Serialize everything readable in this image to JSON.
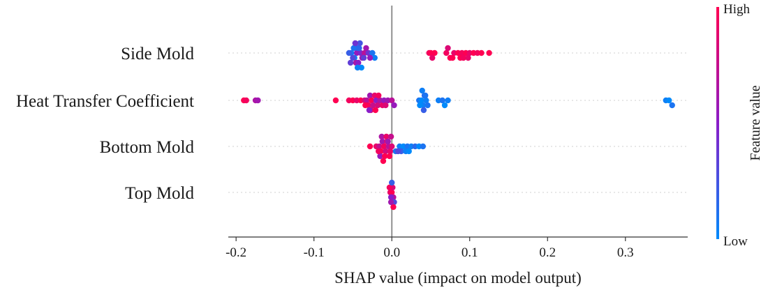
{
  "chart_data": {
    "type": "scatter",
    "subtype": "shap-beeswarm",
    "title": "",
    "xlabel": "SHAP value (impact on model output)",
    "xlim": [
      -0.21,
      0.38
    ],
    "xticks": [
      -0.2,
      -0.1,
      0.0,
      0.1,
      0.2,
      0.3
    ],
    "xtick_labels": [
      "-0.2",
      "-0.1",
      "0.0",
      "0.1",
      "0.2",
      "0.3"
    ],
    "zero_line": 0.0,
    "colorbar": {
      "title": "Feature value",
      "high_label": "High",
      "low_label": "Low",
      "high_color": "#ff0052",
      "mid_color": "#8a1dc8",
      "low_color": "#008afb"
    },
    "features": [
      {
        "name": "Side Mold",
        "points": [
          {
            "x": -0.045,
            "c": 0.55
          },
          {
            "x": -0.052,
            "c": 0.1
          },
          {
            "x": -0.048,
            "c": 0.05
          },
          {
            "x": -0.044,
            "c": 0.2
          },
          {
            "x": -0.04,
            "c": 0.45
          },
          {
            "x": -0.038,
            "c": 0.6
          },
          {
            "x": -0.035,
            "c": 0.7
          },
          {
            "x": -0.05,
            "c": 0.3
          },
          {
            "x": -0.046,
            "c": 0.65
          },
          {
            "x": -0.042,
            "c": 0.15
          },
          {
            "x": -0.03,
            "c": 0.4
          },
          {
            "x": -0.025,
            "c": 0.1
          },
          {
            "x": -0.022,
            "c": 0.05
          },
          {
            "x": -0.055,
            "c": 0.2
          },
          {
            "x": -0.043,
            "c": 0.5
          },
          {
            "x": -0.036,
            "c": 0.35
          },
          {
            "x": -0.049,
            "c": 0.1
          },
          {
            "x": -0.041,
            "c": 0.25
          },
          {
            "x": -0.028,
            "c": 0.55
          },
          {
            "x": -0.047,
            "c": 0.4
          },
          {
            "x": -0.039,
            "c": 0.0
          },
          {
            "x": -0.033,
            "c": 0.6
          },
          {
            "x": -0.053,
            "c": 0.35
          },
          {
            "x": -0.044,
            "c": 0.05
          },
          {
            "x": 0.048,
            "c": 0.95
          },
          {
            "x": 0.05,
            "c": 1.0
          },
          {
            "x": 0.052,
            "c": 0.9
          },
          {
            "x": 0.055,
            "c": 1.0
          },
          {
            "x": 0.07,
            "c": 0.95
          },
          {
            "x": 0.075,
            "c": 1.0
          },
          {
            "x": 0.08,
            "c": 0.9
          },
          {
            "x": 0.085,
            "c": 1.0
          },
          {
            "x": 0.09,
            "c": 0.95
          },
          {
            "x": 0.095,
            "c": 1.0
          },
          {
            "x": 0.1,
            "c": 0.9
          },
          {
            "x": 0.105,
            "c": 1.0
          },
          {
            "x": 0.11,
            "c": 0.95
          },
          {
            "x": 0.115,
            "c": 1.0
          },
          {
            "x": 0.125,
            "c": 1.0
          },
          {
            "x": 0.072,
            "c": 0.85
          },
          {
            "x": 0.088,
            "c": 1.0
          },
          {
            "x": 0.098,
            "c": 0.9
          },
          {
            "x": 0.078,
            "c": 1.0
          },
          {
            "x": 0.092,
            "c": 0.95
          }
        ]
      },
      {
        "name": "Heat Transfer Coefficient",
        "points": [
          {
            "x": -0.19,
            "c": 1.0
          },
          {
            "x": -0.187,
            "c": 0.95
          },
          {
            "x": -0.175,
            "c": 0.65
          },
          {
            "x": -0.172,
            "c": 0.6
          },
          {
            "x": -0.072,
            "c": 1.0
          },
          {
            "x": -0.055,
            "c": 0.95
          },
          {
            "x": -0.05,
            "c": 1.0
          },
          {
            "x": -0.045,
            "c": 0.9
          },
          {
            "x": -0.04,
            "c": 1.0
          },
          {
            "x": -0.035,
            "c": 0.85
          },
          {
            "x": -0.032,
            "c": 0.7
          },
          {
            "x": -0.03,
            "c": 0.95
          },
          {
            "x": -0.028,
            "c": 0.6
          },
          {
            "x": -0.026,
            "c": 1.0
          },
          {
            "x": -0.024,
            "c": 0.75
          },
          {
            "x": -0.022,
            "c": 0.9
          },
          {
            "x": -0.02,
            "c": 0.5
          },
          {
            "x": -0.018,
            "c": 0.8
          },
          {
            "x": -0.015,
            "c": 0.65
          },
          {
            "x": -0.012,
            "c": 0.9
          },
          {
            "x": -0.01,
            "c": 0.55
          },
          {
            "x": -0.008,
            "c": 0.85
          },
          {
            "x": -0.005,
            "c": 0.6
          },
          {
            "x": 0.0,
            "c": 0.7
          },
          {
            "x": 0.003,
            "c": 0.55
          },
          {
            "x": -0.034,
            "c": 1.0
          },
          {
            "x": -0.027,
            "c": 0.8
          },
          {
            "x": -0.017,
            "c": 0.95
          },
          {
            "x": -0.029,
            "c": 0.5
          },
          {
            "x": -0.021,
            "c": 1.0
          },
          {
            "x": 0.035,
            "c": 0.1
          },
          {
            "x": 0.038,
            "c": 0.0
          },
          {
            "x": 0.04,
            "c": 0.05
          },
          {
            "x": 0.042,
            "c": 0.15
          },
          {
            "x": 0.044,
            "c": 0.05
          },
          {
            "x": 0.046,
            "c": 0.1
          },
          {
            "x": 0.036,
            "c": 0.0
          },
          {
            "x": 0.041,
            "c": 0.2
          },
          {
            "x": 0.039,
            "c": 0.05
          },
          {
            "x": 0.043,
            "c": 0.1
          },
          {
            "x": 0.06,
            "c": 0.05
          },
          {
            "x": 0.065,
            "c": 0.1
          },
          {
            "x": 0.068,
            "c": 0.0
          },
          {
            "x": 0.072,
            "c": 0.05
          },
          {
            "x": 0.352,
            "c": 0.05
          },
          {
            "x": 0.356,
            "c": 0.0
          },
          {
            "x": 0.36,
            "c": 0.1
          }
        ]
      },
      {
        "name": "Bottom Mold",
        "points": [
          {
            "x": -0.028,
            "c": 1.0
          },
          {
            "x": -0.02,
            "c": 0.9
          },
          {
            "x": -0.016,
            "c": 0.75
          },
          {
            "x": -0.014,
            "c": 1.0
          },
          {
            "x": -0.012,
            "c": 0.6
          },
          {
            "x": -0.01,
            "c": 0.95
          },
          {
            "x": -0.008,
            "c": 0.8
          },
          {
            "x": -0.006,
            "c": 1.0
          },
          {
            "x": -0.004,
            "c": 0.7
          },
          {
            "x": -0.002,
            "c": 0.9
          },
          {
            "x": 0.0,
            "c": 0.85
          },
          {
            "x": -0.015,
            "c": 0.55
          },
          {
            "x": -0.009,
            "c": 1.0
          },
          {
            "x": -0.013,
            "c": 0.65
          },
          {
            "x": -0.007,
            "c": 0.9
          },
          {
            "x": -0.011,
            "c": 1.0
          },
          {
            "x": -0.005,
            "c": 0.6
          },
          {
            "x": -0.017,
            "c": 0.95
          },
          {
            "x": -0.003,
            "c": 1.0
          },
          {
            "x": -0.001,
            "c": 0.75
          },
          {
            "x": 0.005,
            "c": 0.1
          },
          {
            "x": 0.01,
            "c": 0.05
          },
          {
            "x": 0.015,
            "c": 0.0
          },
          {
            "x": 0.02,
            "c": 0.1
          },
          {
            "x": 0.025,
            "c": 0.05
          },
          {
            "x": 0.03,
            "c": 0.15
          },
          {
            "x": 0.035,
            "c": 0.0
          },
          {
            "x": 0.04,
            "c": 0.1
          },
          {
            "x": 0.012,
            "c": 0.2
          },
          {
            "x": 0.018,
            "c": 0.05
          },
          {
            "x": 0.008,
            "c": 0.3
          },
          {
            "x": 0.022,
            "c": 0.0
          }
        ]
      },
      {
        "name": "Top Mold",
        "points": [
          {
            "x": -0.002,
            "c": 0.9
          },
          {
            "x": 0.0,
            "c": 1.0
          },
          {
            "x": 0.002,
            "c": 0.7
          },
          {
            "x": -0.001,
            "c": 0.5
          },
          {
            "x": 0.001,
            "c": 0.85
          },
          {
            "x": 0.003,
            "c": 0.3
          },
          {
            "x": -0.003,
            "c": 0.95
          },
          {
            "x": 0.0,
            "c": 0.2
          },
          {
            "x": 0.002,
            "c": 1.0
          },
          {
            "x": -0.001,
            "c": 0.6
          }
        ]
      }
    ]
  }
}
